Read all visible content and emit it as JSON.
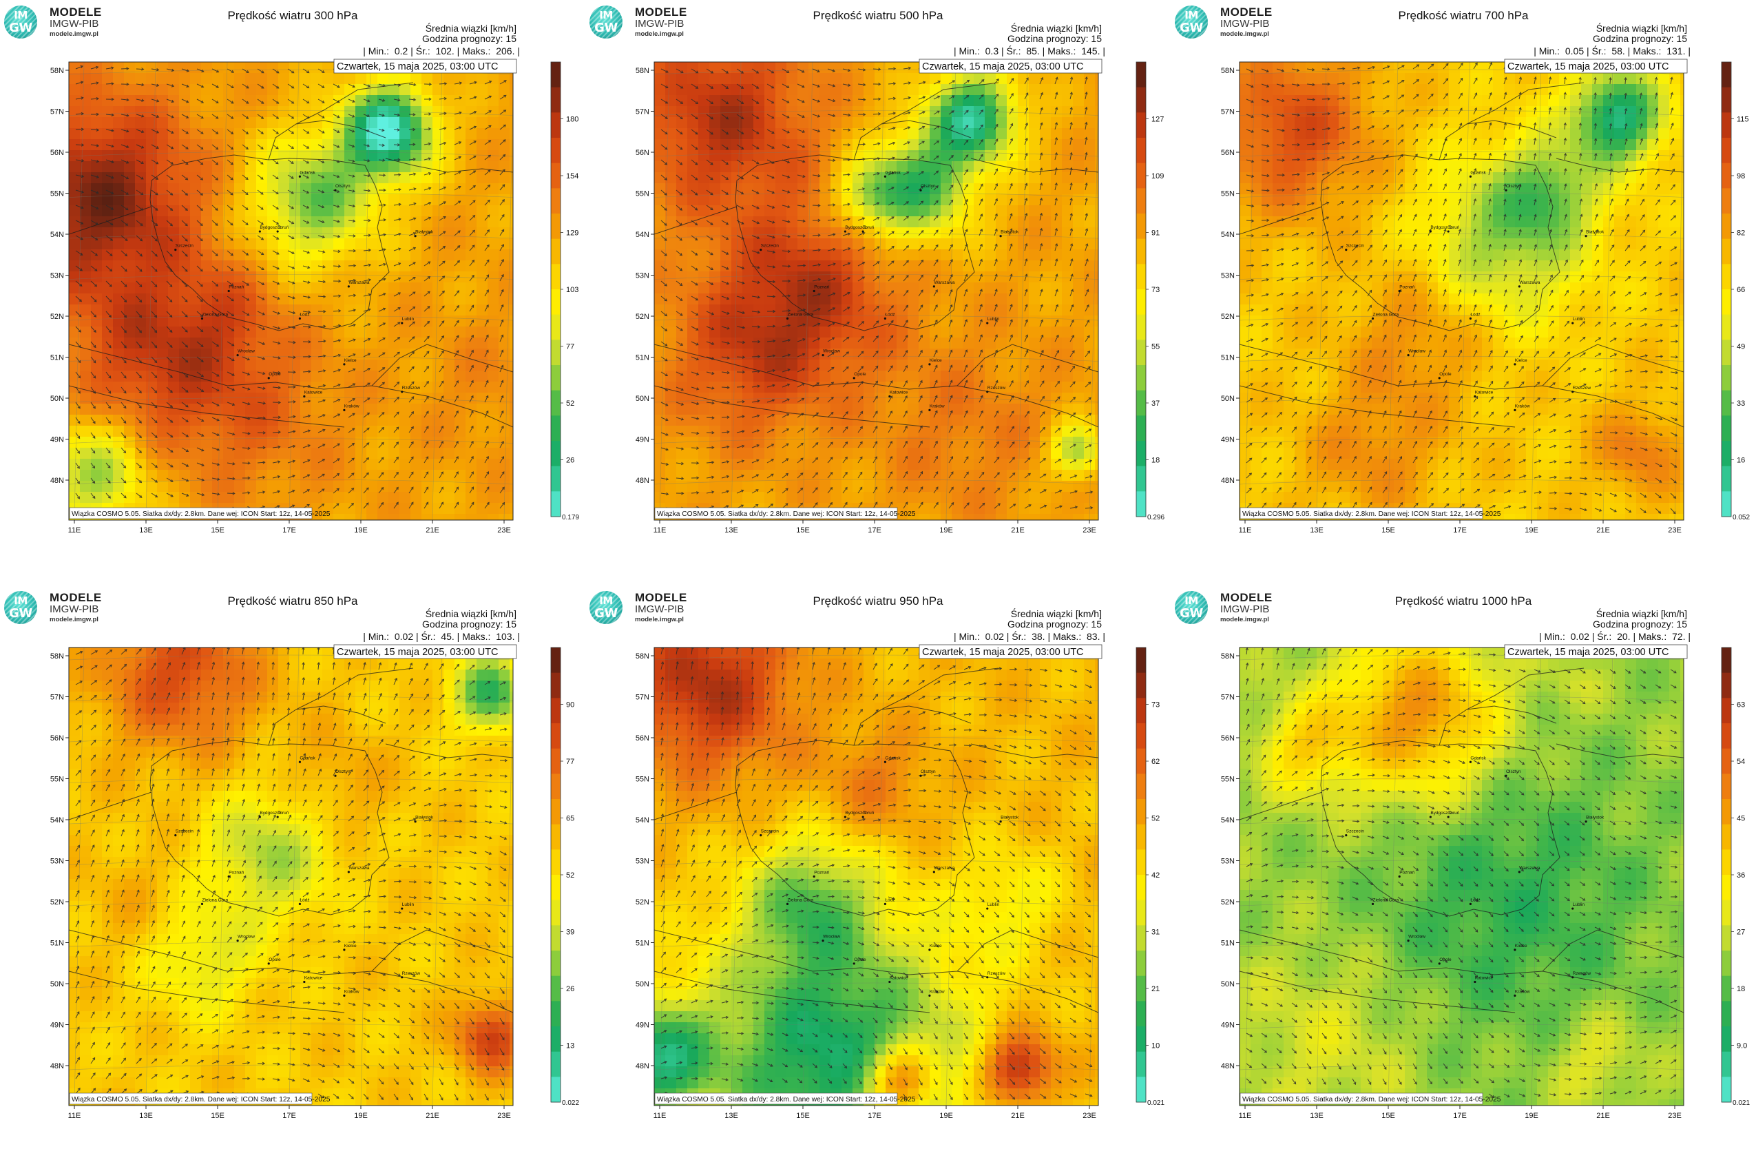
{
  "logo": {
    "line1": "MODELE",
    "line2": "IMGW-PIB",
    "line3": "modele.imgw.pl",
    "mark_top": "IM",
    "mark_bottom": "GW"
  },
  "common": {
    "info_line1": "Średnia wiązki [km/h]",
    "info_line2": "Godzina prognozy: 15",
    "date": "Czwartek, 15 maja 2025, 03:00 UTC",
    "footer": "Wiązka COSMO 5.05. Siatka dx/dy: 2.8km. Dane wej: ICON Start: 12z, 14-05-2025",
    "lat_labels": [
      "58N",
      "57N",
      "56N",
      "55N",
      "54N",
      "53N",
      "52N",
      "51N",
      "50N",
      "49N",
      "48N"
    ],
    "lon_labels": [
      "11E",
      "13E",
      "15E",
      "17E",
      "19E",
      "21E",
      "23E"
    ],
    "colors": {
      "palette": [
        "#5ff0e0",
        "#33c996",
        "#17a85c",
        "#41b64a",
        "#8fce3c",
        "#d8e12a",
        "#fff200",
        "#fbd000",
        "#f5a500",
        "#ee7f10",
        "#e25812",
        "#c83a10",
        "#8a2a12",
        "#4f1e12"
      ]
    },
    "cities": [
      "Gdańsk",
      "Olsztyn",
      "Białystok",
      "Szczecin",
      "Bydgoszcz",
      "Toruń",
      "Poznań",
      "Warszawa",
      "Zielona Góra",
      "Łódź",
      "Lublin",
      "Wrocław",
      "Kielce",
      "Opole",
      "Katowice",
      "Kraków",
      "Rzeszów"
    ]
  },
  "panels": [
    {
      "id": "p300",
      "title": "Prędkość wiatru 300 hPa",
      "min": "0.2",
      "avg": "102.",
      "max": "206.",
      "ticks": [
        "180",
        "154",
        "129",
        "103",
        "77",
        "52",
        "26"
      ],
      "bottom": "0.179",
      "base": 0.62,
      "blobs": [
        [
          0.07,
          0.3,
          0.22,
          0.32
        ],
        [
          0.18,
          0.65,
          0.18,
          0.18
        ],
        [
          0.72,
          0.15,
          0.1,
          -0.6
        ],
        [
          0.55,
          0.3,
          0.14,
          -0.35
        ],
        [
          0.35,
          0.55,
          0.12,
          0.1
        ],
        [
          0.4,
          0.75,
          0.2,
          0.12
        ],
        [
          0.06,
          0.9,
          0.12,
          -0.3
        ],
        [
          0.95,
          0.7,
          0.15,
          0.05
        ]
      ]
    },
    {
      "id": "p500",
      "title": "Prędkość wiatru 500 hPa",
      "min": "0.3",
      "avg": "85.",
      "max": "145.",
      "ticks": [
        "127",
        "109",
        "91",
        "73",
        "55",
        "37",
        "18"
      ],
      "bottom": "0.296",
      "base": 0.62,
      "blobs": [
        [
          0.15,
          0.12,
          0.2,
          0.25
        ],
        [
          0.35,
          0.5,
          0.2,
          0.22
        ],
        [
          0.2,
          0.65,
          0.18,
          0.15
        ],
        [
          0.72,
          0.12,
          0.1,
          -0.5
        ],
        [
          0.6,
          0.27,
          0.12,
          -0.4
        ],
        [
          0.48,
          0.3,
          0.08,
          -0.25
        ],
        [
          0.95,
          0.85,
          0.06,
          -0.3
        ],
        [
          0.7,
          0.8,
          0.2,
          0.08
        ]
      ]
    },
    {
      "id": "p700",
      "title": "Prędkość wiatru 700 hPa",
      "min": "0.05",
      "avg": "58.",
      "max": "131.",
      "ticks": [
        "115",
        "98",
        "82",
        "66",
        "49",
        "33",
        "16"
      ],
      "bottom": "0.052",
      "base": 0.55,
      "blobs": [
        [
          0.12,
          0.15,
          0.18,
          0.25
        ],
        [
          0.85,
          0.12,
          0.1,
          -0.45
        ],
        [
          0.6,
          0.38,
          0.18,
          -0.25
        ],
        [
          0.4,
          0.6,
          0.15,
          0.12
        ],
        [
          0.3,
          0.85,
          0.15,
          0.12
        ],
        [
          0.9,
          0.85,
          0.1,
          0.15
        ],
        [
          0.7,
          0.28,
          0.1,
          -0.2
        ]
      ]
    },
    {
      "id": "p850",
      "title": "Prędkość wiatru 850 hPa",
      "min": "0.02",
      "avg": "45.",
      "max": "103.",
      "ticks": [
        "90",
        "77",
        "65",
        "52",
        "39",
        "26",
        "13"
      ],
      "bottom": "0.022",
      "base": 0.55,
      "blobs": [
        [
          0.25,
          0.05,
          0.18,
          0.25
        ],
        [
          0.95,
          0.1,
          0.08,
          -0.35
        ],
        [
          0.45,
          0.45,
          0.14,
          -0.22
        ],
        [
          0.95,
          0.85,
          0.08,
          0.28
        ],
        [
          0.6,
          0.3,
          0.12,
          0.08
        ],
        [
          0.15,
          0.55,
          0.12,
          0.05
        ],
        [
          0.3,
          0.68,
          0.12,
          -0.15
        ]
      ]
    },
    {
      "id": "p950",
      "title": "Prędkość wiatru 950 hPa",
      "min": "0.02",
      "avg": "38.",
      "max": "83.",
      "ticks": [
        "73",
        "62",
        "52",
        "42",
        "31",
        "21",
        "10"
      ],
      "bottom": "0.021",
      "base": 0.58,
      "blobs": [
        [
          0.12,
          0.08,
          0.2,
          0.3
        ],
        [
          0.5,
          0.3,
          0.12,
          0.12
        ],
        [
          0.35,
          0.55,
          0.14,
          -0.25
        ],
        [
          0.4,
          0.9,
          0.3,
          -0.45
        ],
        [
          0.0,
          0.9,
          0.12,
          -0.4
        ],
        [
          0.55,
          0.95,
          0.08,
          0.4
        ],
        [
          0.82,
          0.92,
          0.08,
          0.35
        ],
        [
          0.8,
          0.55,
          0.12,
          -0.12
        ]
      ]
    },
    {
      "id": "p1000",
      "title": "Prędkość wiatru 1000 hPa",
      "min": "0.02",
      "avg": "20.",
      "max": "72.",
      "ticks": [
        "63",
        "54",
        "45",
        "36",
        "27",
        "18",
        "9.0"
      ],
      "bottom": "0.021",
      "base": 0.32,
      "blobs": [
        [
          0.4,
          0.15,
          0.18,
          0.35
        ],
        [
          0.15,
          0.22,
          0.1,
          0.2
        ],
        [
          0.75,
          0.08,
          0.06,
          0.05
        ],
        [
          0.6,
          0.55,
          0.3,
          -0.12
        ],
        [
          0.2,
          0.85,
          0.2,
          0.08
        ],
        [
          0.8,
          0.9,
          0.1,
          0.1
        ]
      ]
    }
  ]
}
